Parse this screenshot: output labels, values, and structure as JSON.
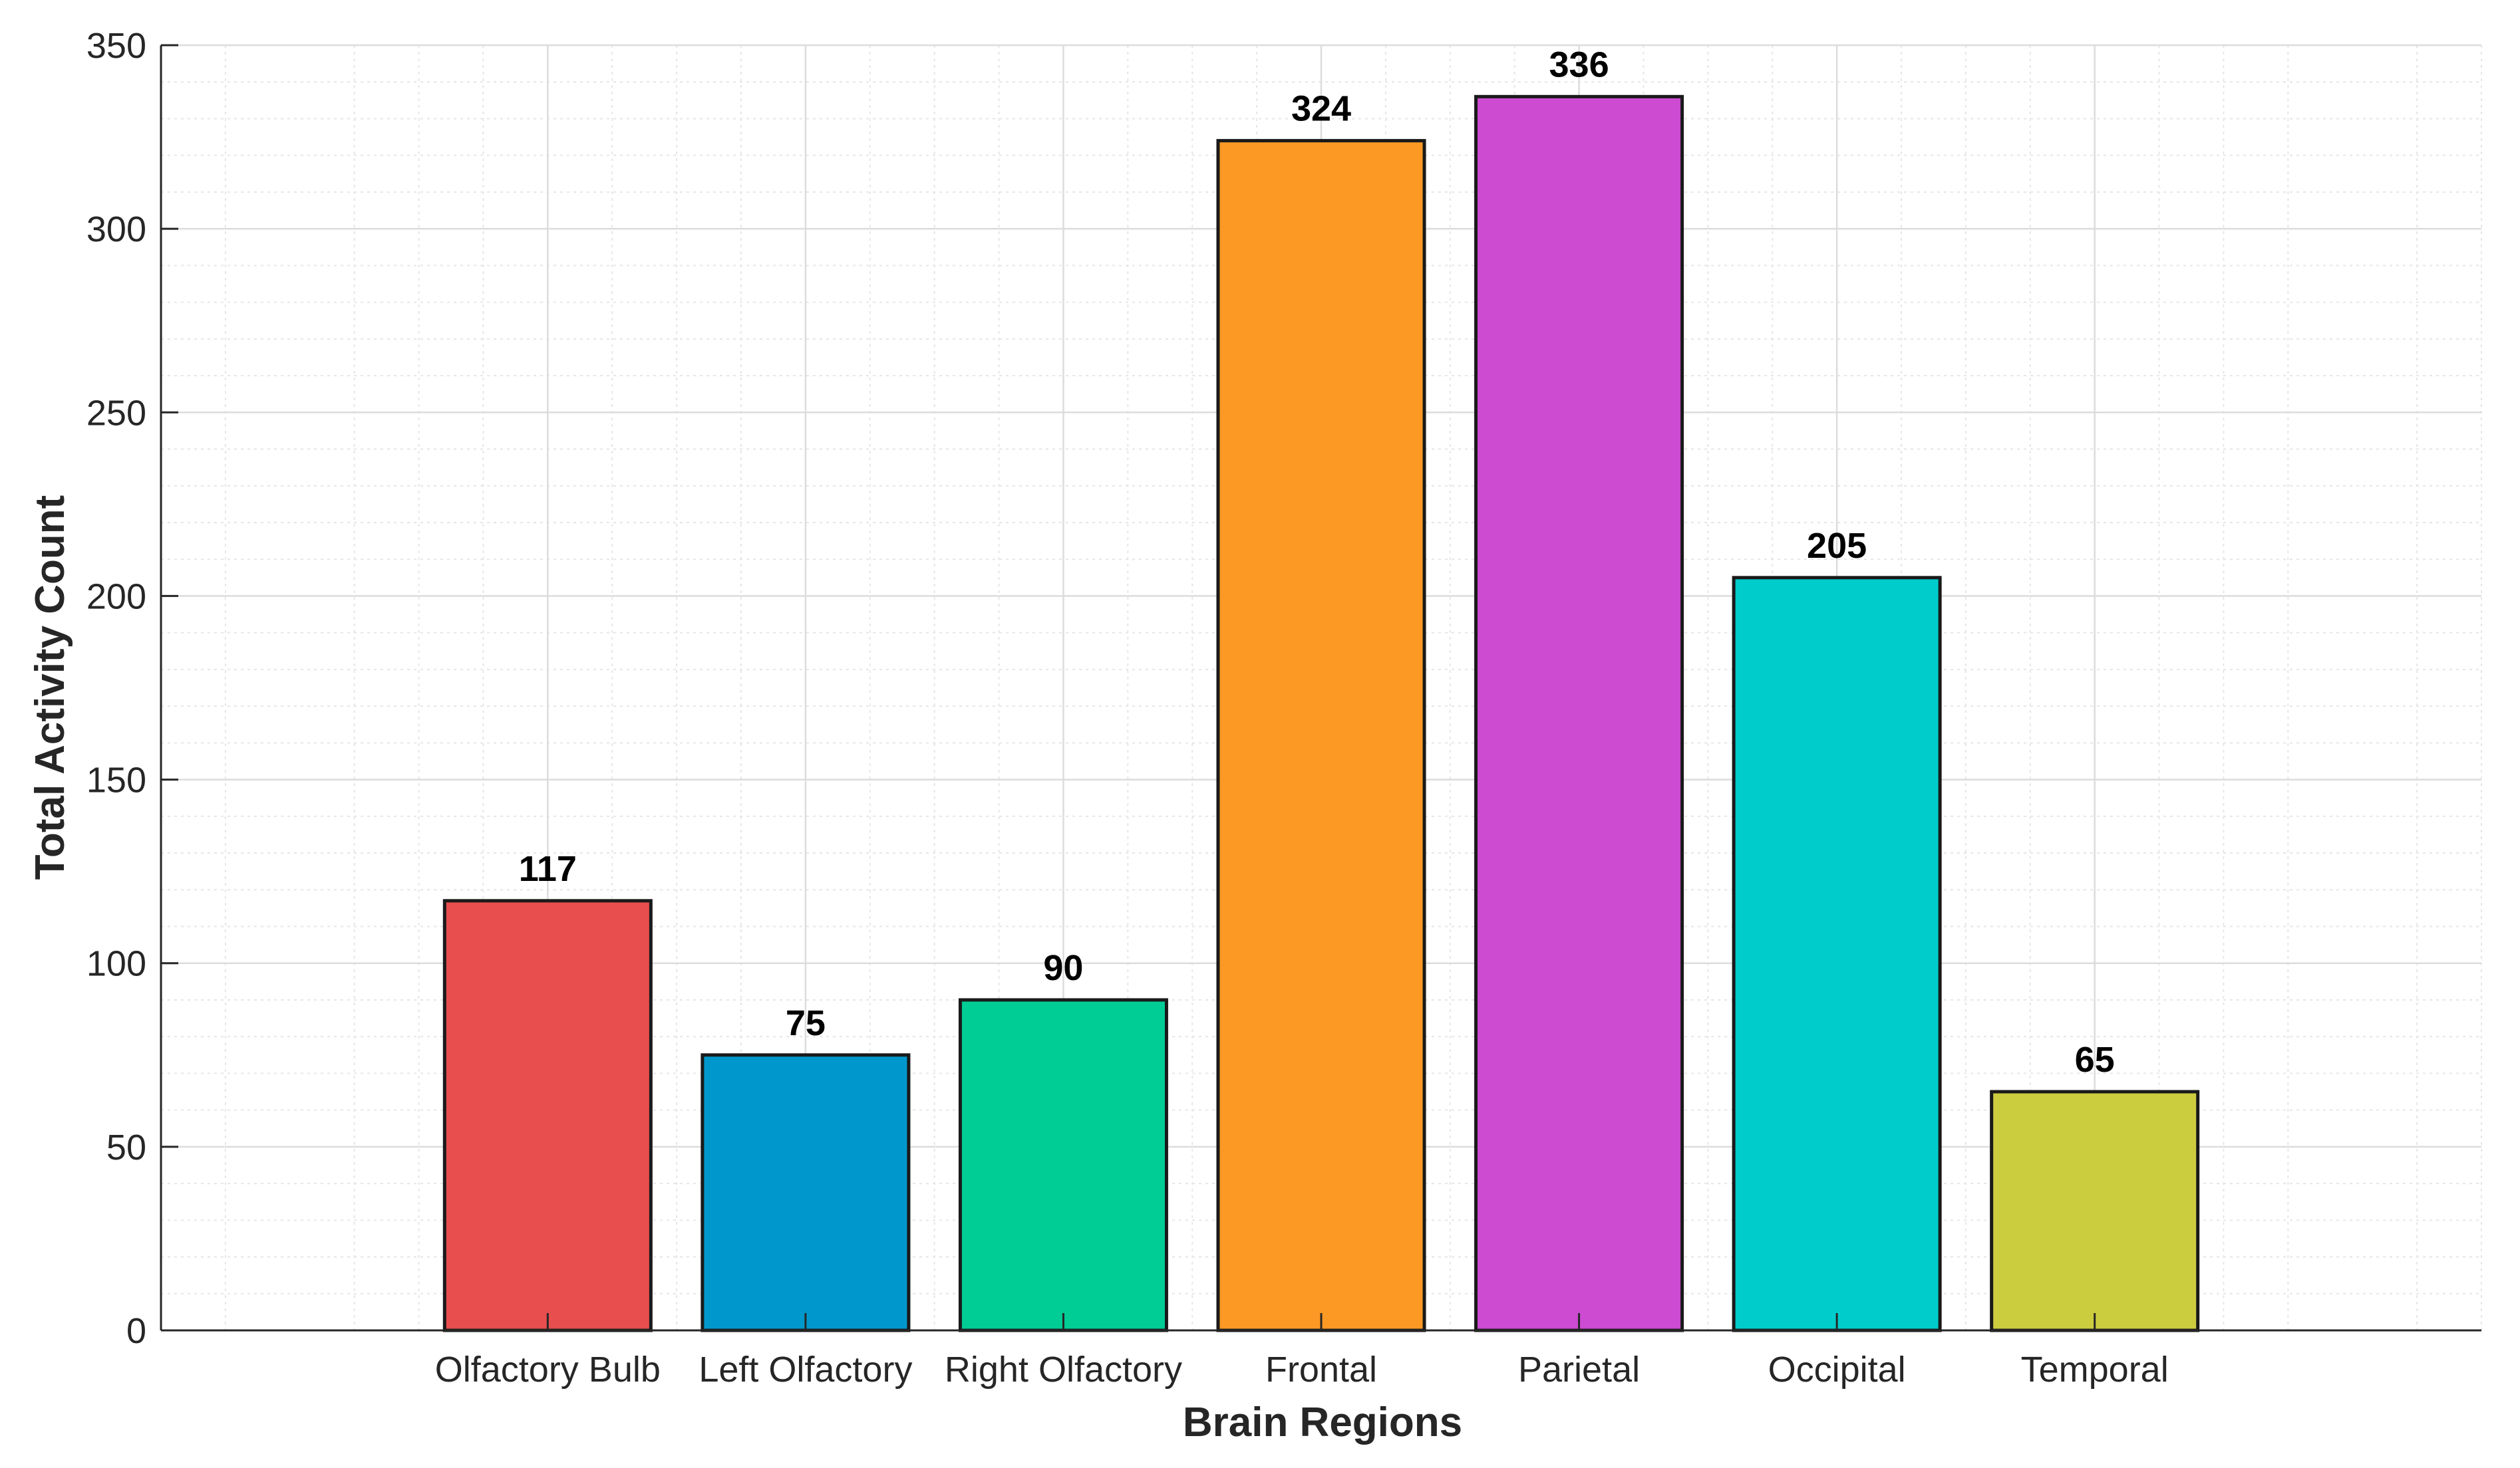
{
  "chart_data": {
    "type": "bar",
    "title": "",
    "xlabel": "Brain Regions",
    "ylabel": "Total Activity Count",
    "categories": [
      "Olfactory Bulb",
      "Left Olfactory",
      "Right Olfactory",
      "Frontal",
      "Parietal",
      "Occipital",
      "Temporal"
    ],
    "values": [
      117,
      75,
      90,
      324,
      336,
      205,
      65
    ],
    "data_labels": [
      "117",
      "75",
      "90",
      "324",
      "336",
      "205",
      "65"
    ],
    "colors": [
      "#e84e4e",
      "#0098cc",
      "#00cc96",
      "#fc9924",
      "#cc4bd1",
      "#00cccc",
      "#cccc3f"
    ],
    "ylim": [
      0,
      350
    ],
    "yticks": [
      0,
      50,
      100,
      150,
      200,
      250,
      300,
      350
    ],
    "ytick_labels": [
      "0",
      "50",
      "100",
      "150",
      "200",
      "250",
      "300",
      "350"
    ],
    "ygrid_minor_step": 10,
    "grid": true,
    "legend": "none"
  }
}
